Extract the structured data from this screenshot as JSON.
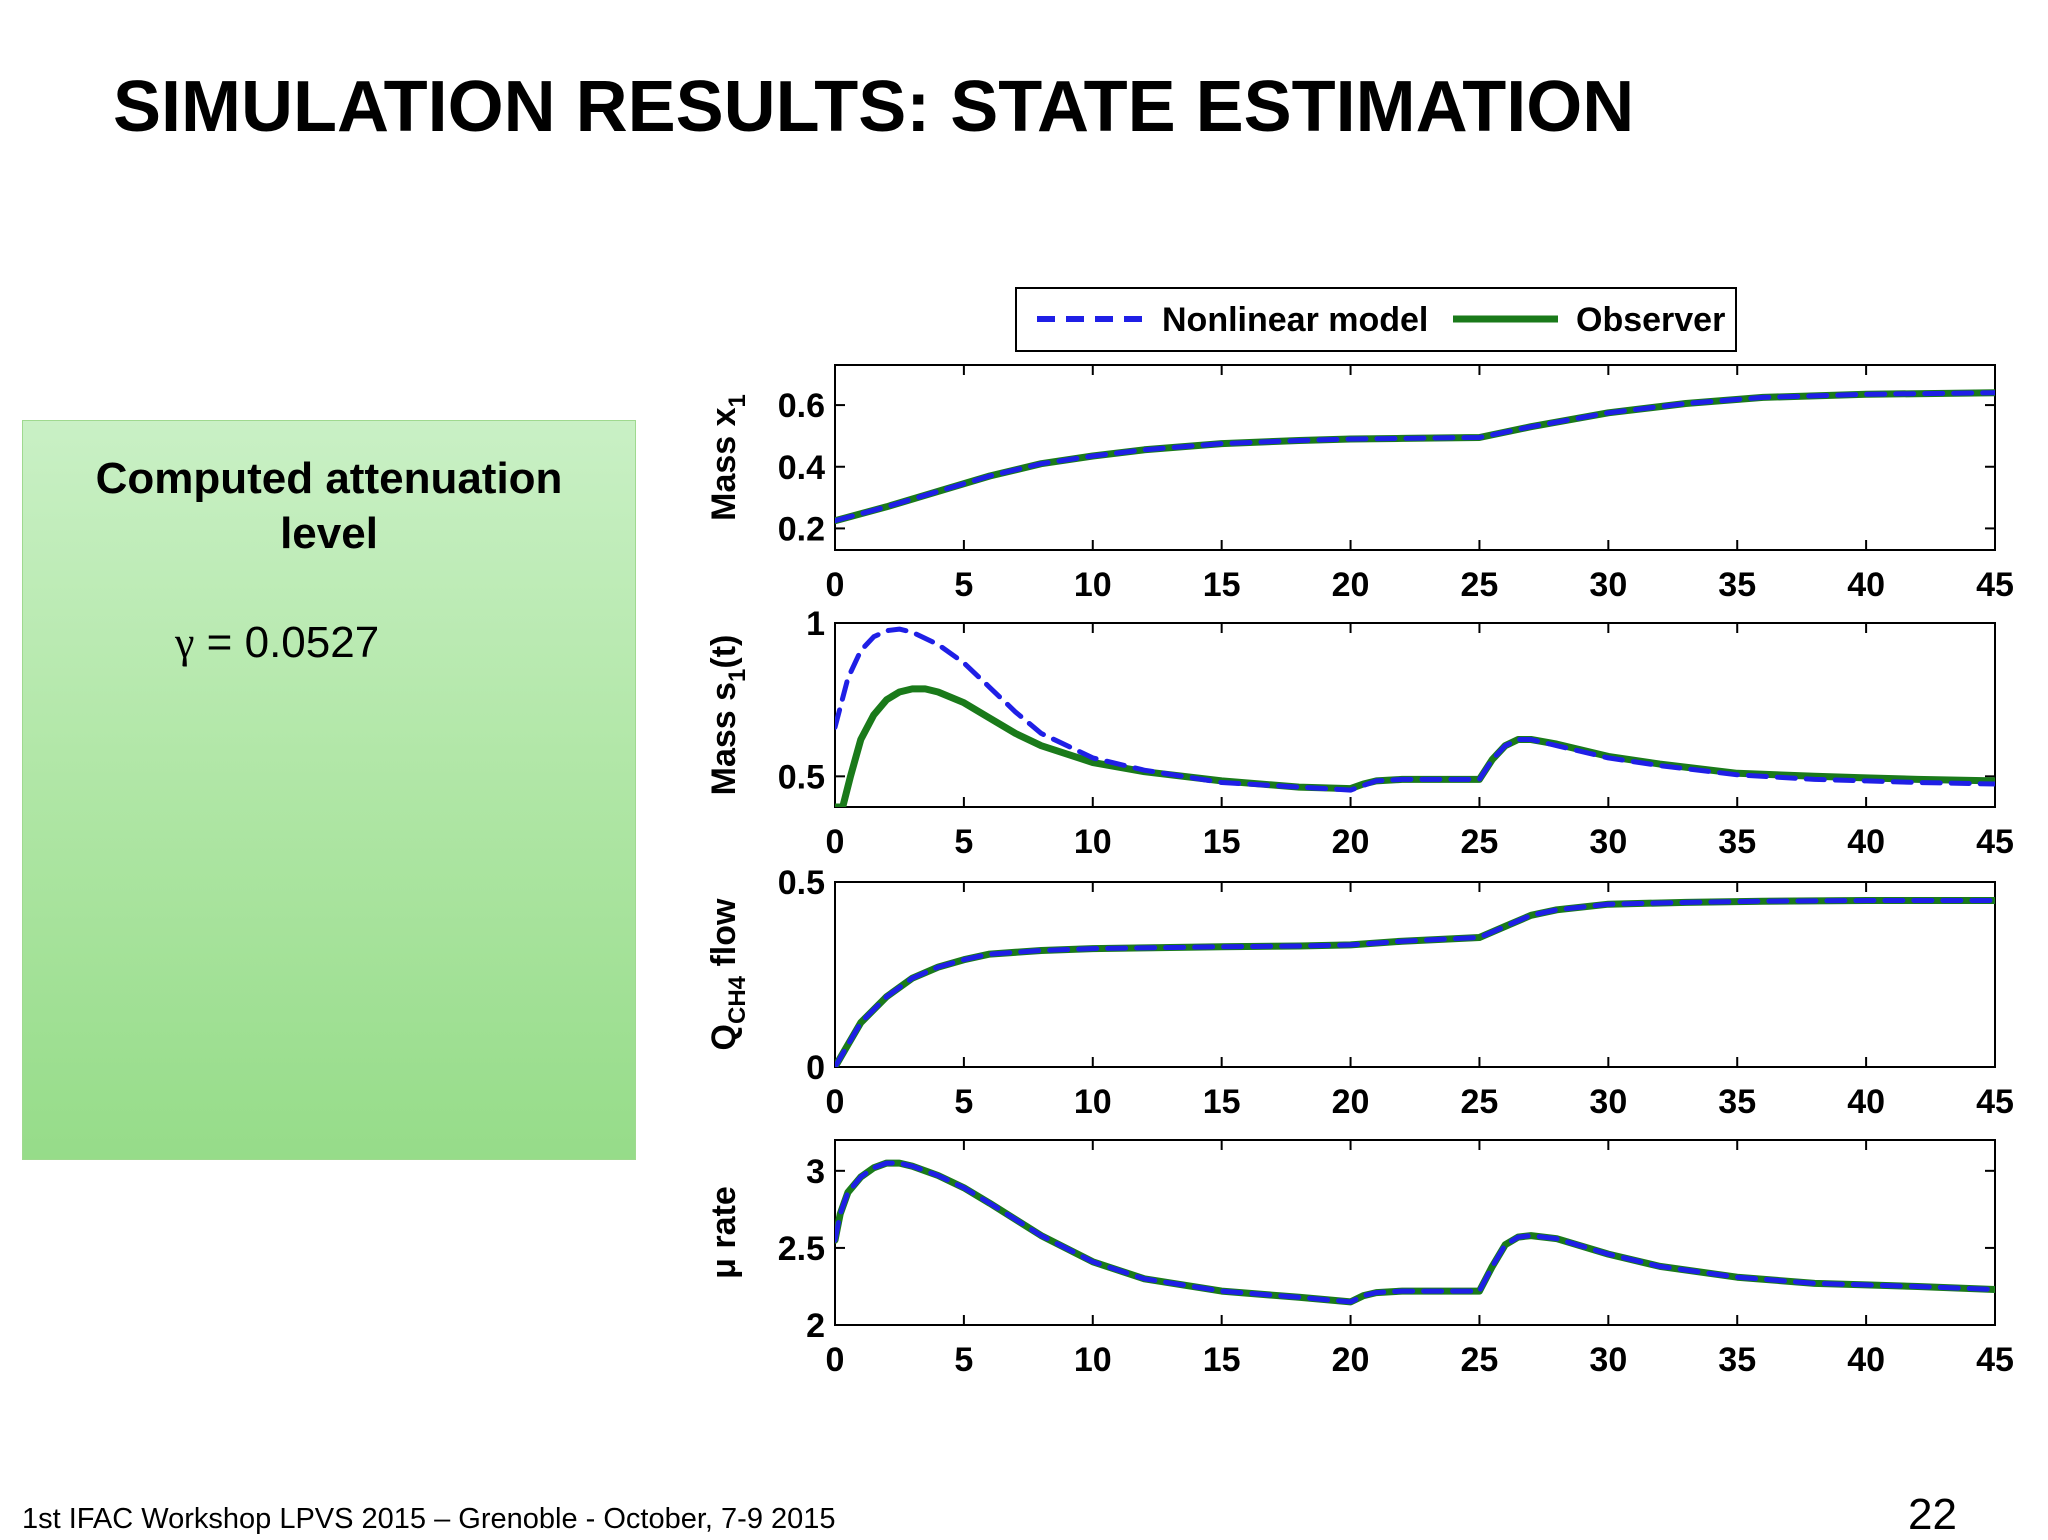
{
  "slide": {
    "title": "SIMULATION RESULTS: STATE ESTIMATION",
    "footer": "1st IFAC Workshop LPVS 2015 – Grenoble - October, 7-9 2015",
    "page_number": "22"
  },
  "info_box": {
    "heading_line1": "Computed attenuation",
    "heading_line2": "level",
    "gamma_symbol": "γ",
    "gamma_value": " = 0.0527"
  },
  "colors": {
    "nonlinear": "#1f1fe6",
    "observer": "#1a7a1a"
  },
  "chart_data": {
    "type": "line",
    "legend": [
      "Nonlinear model",
      "Observer"
    ],
    "legend_position": "top-center",
    "x_ticks": [
      0,
      5,
      10,
      15,
      20,
      25,
      30,
      35,
      40,
      45
    ],
    "xlim": [
      0,
      45
    ],
    "subplots": [
      {
        "ylabel_main": "Mass x",
        "ylabel_sub": "1",
        "ylabel_suffix": "",
        "ylim": [
          0.13,
          0.73
        ],
        "y_ticks": [
          0.2,
          0.4,
          0.6
        ],
        "y_tick_labels": [
          "0.2",
          "0.4",
          "0.6"
        ],
        "series": [
          {
            "name": "Nonlinear model",
            "x": [
              0,
              2,
              4,
              6,
              8,
              10,
              12,
              15,
              18,
              20,
              22,
              25,
              27,
              30,
              33,
              36,
              40,
              45
            ],
            "y": [
              0.225,
              0.27,
              0.32,
              0.37,
              0.41,
              0.435,
              0.455,
              0.475,
              0.485,
              0.49,
              0.492,
              0.495,
              0.53,
              0.575,
              0.605,
              0.625,
              0.635,
              0.64
            ]
          },
          {
            "name": "Observer",
            "x": [
              0,
              2,
              4,
              6,
              8,
              10,
              12,
              15,
              18,
              20,
              22,
              25,
              27,
              30,
              33,
              36,
              40,
              45
            ],
            "y": [
              0.225,
              0.27,
              0.32,
              0.37,
              0.41,
              0.435,
              0.455,
              0.475,
              0.485,
              0.49,
              0.492,
              0.495,
              0.53,
              0.575,
              0.605,
              0.625,
              0.635,
              0.64
            ]
          }
        ]
      },
      {
        "ylabel_main": "Mass s",
        "ylabel_sub": "1",
        "ylabel_suffix": "(t)",
        "ylim": [
          0.4,
          1.0
        ],
        "y_ticks": [
          0.5,
          1.0
        ],
        "y_tick_labels": [
          "0.5",
          "1"
        ],
        "series": [
          {
            "name": "Nonlinear model",
            "x": [
              0,
              0.5,
              1,
              1.5,
              2,
              2.5,
              3,
              4,
              5,
              6,
              7,
              8,
              10,
              12,
              15,
              18,
              20,
              20.5,
              21,
              22,
              24,
              25,
              25.5,
              26,
              26.5,
              27,
              28,
              30,
              32,
              35,
              38,
              40,
              42,
              45
            ],
            "y": [
              0.66,
              0.82,
              0.91,
              0.955,
              0.975,
              0.98,
              0.97,
              0.93,
              0.87,
              0.79,
              0.71,
              0.64,
              0.56,
              0.52,
              0.48,
              0.465,
              0.455,
              0.47,
              0.485,
              0.49,
              0.49,
              0.49,
              0.555,
              0.6,
              0.62,
              0.62,
              0.6,
              0.56,
              0.535,
              0.505,
              0.49,
              0.485,
              0.48,
              0.475
            ]
          },
          {
            "name": "Observer",
            "x": [
              0,
              0.3,
              0.6,
              1,
              1.5,
              2,
              2.5,
              3,
              3.5,
              4,
              5,
              6,
              7,
              8,
              10,
              12,
              15,
              18,
              20,
              20.5,
              21,
              22,
              24,
              25,
              25.5,
              26,
              26.5,
              27,
              28,
              30,
              32,
              35,
              38,
              40,
              42,
              45
            ],
            "y": [
              0.4,
              0.4,
              0.5,
              0.62,
              0.7,
              0.75,
              0.775,
              0.785,
              0.785,
              0.775,
              0.74,
              0.69,
              0.64,
              0.6,
              0.545,
              0.515,
              0.485,
              0.465,
              0.46,
              0.475,
              0.485,
              0.49,
              0.49,
              0.49,
              0.555,
              0.6,
              0.62,
              0.62,
              0.605,
              0.565,
              0.54,
              0.51,
              0.5,
              0.495,
              0.49,
              0.485
            ]
          }
        ]
      },
      {
        "ylabel_main": "Q",
        "ylabel_sub": "CH4",
        "ylabel_suffix": " flow",
        "ylim": [
          0,
          0.5
        ],
        "y_ticks": [
          0,
          0.5
        ],
        "y_tick_labels": [
          "0",
          "0.5"
        ],
        "series": [
          {
            "name": "Nonlinear model",
            "x": [
              0,
              0.5,
              1,
              2,
              3,
              4,
              5,
              6,
              8,
              10,
              12,
              15,
              18,
              20,
              22,
              25,
              26,
              27,
              28,
              30,
              33,
              36,
              40,
              45
            ],
            "y": [
              0,
              0.06,
              0.12,
              0.19,
              0.24,
              0.27,
              0.29,
              0.305,
              0.315,
              0.32,
              0.322,
              0.325,
              0.327,
              0.33,
              0.34,
              0.35,
              0.38,
              0.41,
              0.425,
              0.44,
              0.445,
              0.448,
              0.45,
              0.45
            ]
          },
          {
            "name": "Observer",
            "x": [
              0,
              0.5,
              1,
              2,
              3,
              4,
              5,
              6,
              8,
              10,
              12,
              15,
              18,
              20,
              22,
              25,
              26,
              27,
              28,
              30,
              33,
              36,
              40,
              45
            ],
            "y": [
              0,
              0.06,
              0.12,
              0.19,
              0.24,
              0.27,
              0.29,
              0.305,
              0.315,
              0.32,
              0.322,
              0.325,
              0.327,
              0.33,
              0.34,
              0.35,
              0.38,
              0.41,
              0.425,
              0.44,
              0.445,
              0.448,
              0.45,
              0.45
            ]
          }
        ]
      },
      {
        "ylabel_main": "μ rate",
        "ylabel_sub": "",
        "ylabel_suffix": "",
        "ylim": [
          2,
          3.2
        ],
        "y_ticks": [
          2,
          2.5,
          3
        ],
        "y_tick_labels": [
          "2",
          "2.5",
          "3"
        ],
        "series": [
          {
            "name": "Nonlinear model",
            "x": [
              0,
              0.2,
              0.5,
              1,
              1.5,
              2,
              2.5,
              3,
              4,
              5,
              6,
              8,
              10,
              12,
              15,
              18,
              20,
              20.5,
              21,
              22,
              24,
              25,
              25.5,
              26,
              26.5,
              27,
              28,
              30,
              32,
              35,
              38,
              40,
              42,
              45
            ],
            "y": [
              2.55,
              2.72,
              2.86,
              2.96,
              3.02,
              3.05,
              3.05,
              3.03,
              2.97,
              2.89,
              2.79,
              2.58,
              2.41,
              2.3,
              2.22,
              2.18,
              2.15,
              2.19,
              2.21,
              2.22,
              2.22,
              2.22,
              2.38,
              2.52,
              2.57,
              2.58,
              2.56,
              2.46,
              2.38,
              2.31,
              2.27,
              2.26,
              2.25,
              2.23
            ]
          },
          {
            "name": "Observer",
            "x": [
              0,
              0.2,
              0.5,
              1,
              1.5,
              2,
              2.5,
              3,
              4,
              5,
              6,
              8,
              10,
              12,
              15,
              18,
              20,
              20.5,
              21,
              22,
              24,
              25,
              25.5,
              26,
              26.5,
              27,
              28,
              30,
              32,
              35,
              38,
              40,
              42,
              45
            ],
            "y": [
              2.55,
              2.72,
              2.86,
              2.96,
              3.02,
              3.05,
              3.05,
              3.03,
              2.97,
              2.89,
              2.79,
              2.58,
              2.41,
              2.3,
              2.22,
              2.18,
              2.15,
              2.19,
              2.21,
              2.22,
              2.22,
              2.22,
              2.38,
              2.52,
              2.57,
              2.58,
              2.56,
              2.46,
              2.38,
              2.31,
              2.27,
              2.26,
              2.25,
              2.23
            ]
          }
        ]
      }
    ]
  }
}
